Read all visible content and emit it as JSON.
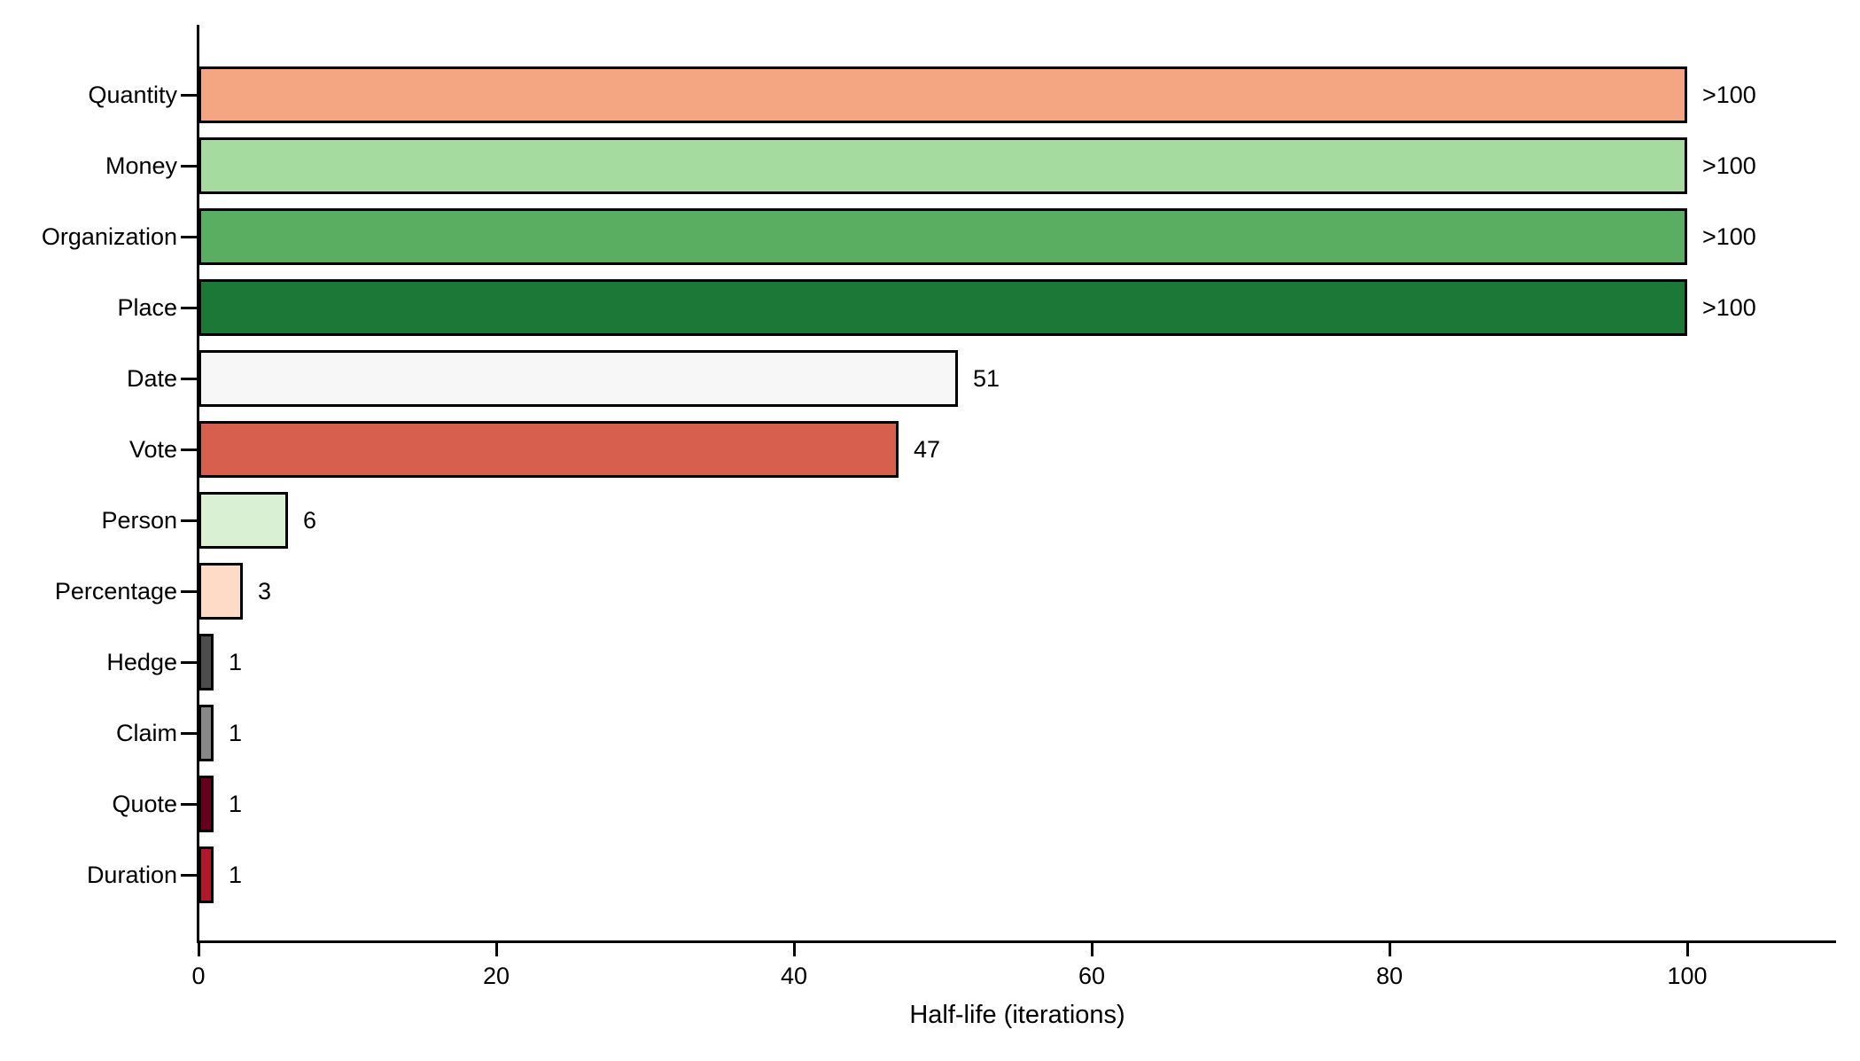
{
  "chart_data": {
    "type": "bar",
    "orientation": "horizontal",
    "title": "",
    "xlabel": "Half-life (iterations)",
    "ylabel": "",
    "xlim": [
      0,
      110
    ],
    "grid": false,
    "legend": null,
    "categories": [
      "Quantity",
      "Money",
      "Organization",
      "Place",
      "Date",
      "Vote",
      "Person",
      "Percentage",
      "Hedge",
      "Claim",
      "Quote",
      "Duration"
    ],
    "values": [
      100,
      100,
      100,
      100,
      51,
      47,
      6,
      3,
      1,
      1,
      1,
      1
    ],
    "value_labels": [
      ">100",
      ">100",
      ">100",
      ">100",
      "51",
      "47",
      "6",
      "3",
      "1",
      "1",
      "1",
      "1"
    ],
    "bar_colors": [
      "#F4A582",
      "#A6DBA0",
      "#5AAE61",
      "#1B7837",
      "#F7F7F7",
      "#D6604D",
      "#D9F0D3",
      "#FDDBC7",
      "#4D4D4D",
      "#878787",
      "#67001F",
      "#B2182B"
    ],
    "bar_edge_color": "#000000",
    "x_ticks": [
      0,
      20,
      40,
      60,
      80,
      100
    ],
    "x_tick_labels": [
      "0",
      "20",
      "40",
      "60",
      "80",
      "100"
    ],
    "background_color": "#FFFFFF",
    "text_color": "#000000"
  }
}
